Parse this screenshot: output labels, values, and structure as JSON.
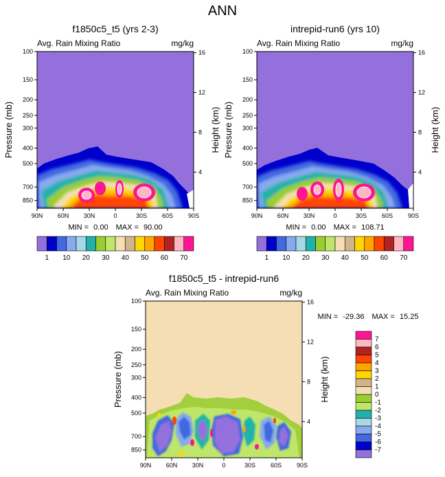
{
  "figure": {
    "title": "ANN"
  },
  "chart_data": [
    {
      "type": "heatmap",
      "title": "f1850c5_t5 (yrs 2-3)",
      "left_label": "Avg. Rain Mixing Ratio",
      "right_label": "mg/kg",
      "ylabel": "Pressure (mb)",
      "y2label": "Height (km)",
      "y_log_scale": true,
      "x_ticks": [
        "90N",
        "60N",
        "30N",
        "0",
        "30S",
        "60S",
        "90S"
      ],
      "y_ticks": [
        100,
        150,
        200,
        250,
        300,
        400,
        500,
        700,
        850
      ],
      "y2_ticks": [
        16,
        12,
        8,
        4
      ],
      "min": "0.00",
      "max": "90.00",
      "stats_text": {
        "min_label": "MIN =",
        "min": "0.00",
        "max_label": "MAX =",
        "max": "90.00"
      },
      "colorbar": {
        "colors": [
          "#9370db",
          "#0000cd",
          "#4169e1",
          "#87a9ee",
          "#a6d8e6",
          "#20b2aa",
          "#9acd32",
          "#bfe66a",
          "#f5deb3",
          "#d2b48c",
          "#ffd700",
          "#ffa500",
          "#ff4500",
          "#b22222",
          "#ffb6c1",
          "#ff1493"
        ],
        "labels": [
          "1",
          "10",
          "20",
          "30",
          "40",
          "50",
          "60",
          "70"
        ]
      }
    },
    {
      "type": "heatmap",
      "title": "intrepid-run6 (yrs 10)",
      "left_label": "Avg. Rain Mixing Ratio",
      "right_label": "mg/kg",
      "ylabel": "Pressure (mb)",
      "y2label": "Height (km)",
      "y_log_scale": true,
      "x_ticks": [
        "90N",
        "60N",
        "30N",
        "0",
        "30S",
        "60S",
        "90S"
      ],
      "y_ticks": [
        100,
        150,
        200,
        250,
        300,
        400,
        500,
        700,
        850
      ],
      "y2_ticks": [
        16,
        12,
        8,
        4
      ],
      "min": "0.00",
      "max": "108.71",
      "stats_text": {
        "min_label": "MIN =",
        "min": "0.00",
        "max_label": "MAX =",
        "max": "108.71"
      },
      "colorbar": {
        "colors": [
          "#9370db",
          "#0000cd",
          "#4169e1",
          "#87a9ee",
          "#a6d8e6",
          "#20b2aa",
          "#9acd32",
          "#bfe66a",
          "#f5deb3",
          "#d2b48c",
          "#ffd700",
          "#ffa500",
          "#ff4500",
          "#b22222",
          "#ffb6c1",
          "#ff1493"
        ],
        "labels": [
          "1",
          "10",
          "20",
          "30",
          "40",
          "50",
          "60",
          "70"
        ]
      }
    },
    {
      "type": "heatmap",
      "title": "f1850c5_t5 - intrepid-run6",
      "left_label": "Avg. Rain Mixing Ratio",
      "right_label": "mg/kg",
      "ylabel": "Pressure (mb)",
      "y2label": "Height (km)",
      "y_log_scale": true,
      "x_ticks": [
        "90N",
        "60N",
        "30N",
        "0",
        "30S",
        "60S",
        "90S"
      ],
      "y_ticks": [
        100,
        150,
        200,
        250,
        300,
        400,
        500,
        700,
        850
      ],
      "y2_ticks": [
        16,
        12,
        8,
        4
      ],
      "min": "-29.36",
      "max": "15.25",
      "stats_text": {
        "min_label": "MIN =",
        "min": "-29.36",
        "max_label": "MAX =",
        "max": "15.25"
      },
      "colorbar": {
        "colors": [
          "#ff1493",
          "#ffb6c1",
          "#b22222",
          "#ff4500",
          "#ffa500",
          "#ffd700",
          "#d2b48c",
          "#f5deb3",
          "#9acd32",
          "#bfe66a",
          "#20b2aa",
          "#a6d8e6",
          "#87a9ee",
          "#4169e1",
          "#0000cd",
          "#9370db"
        ],
        "labels": [
          "7",
          "6",
          "5",
          "4",
          "3",
          "2",
          "1",
          "0",
          "-1",
          "-2",
          "-3",
          "-4",
          "-5",
          "-6",
          "-7"
        ]
      }
    }
  ]
}
